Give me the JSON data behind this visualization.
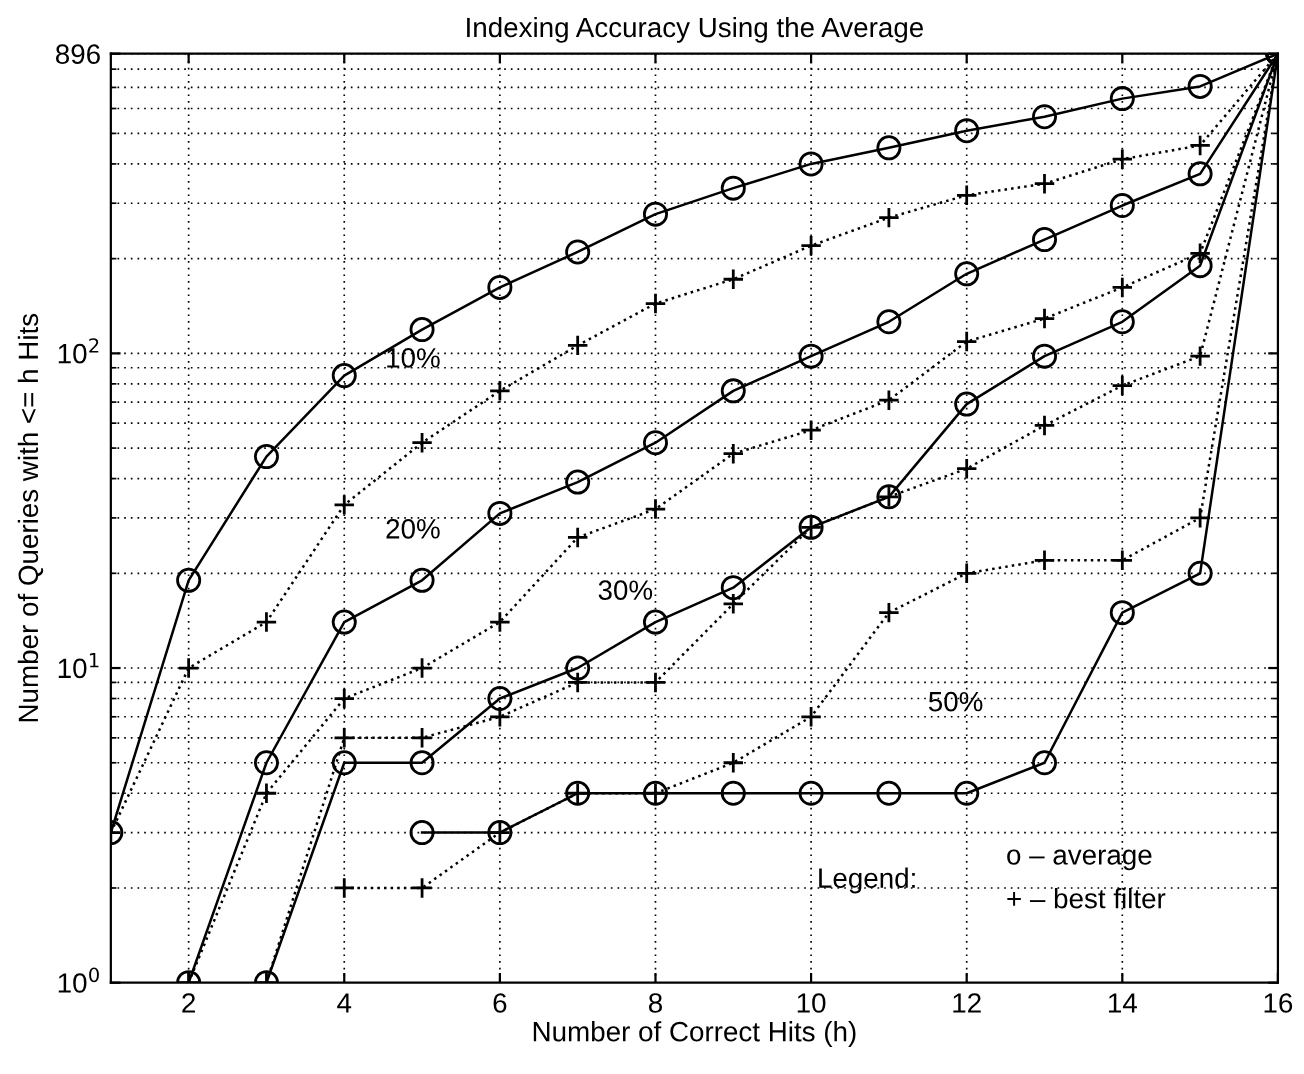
{
  "chart_data": {
    "type": "line",
    "title": "Indexing Accuracy Using the Average",
    "xlabel": "Number of Correct Hits (h)",
    "ylabel": "Number of Queries with <= h Hits",
    "log": "y",
    "grid": true,
    "legend": false,
    "xlim": [
      1,
      16
    ],
    "xticks": [
      2,
      4,
      6,
      8,
      10,
      12,
      14,
      16
    ],
    "ylim": [
      1,
      896
    ],
    "yticks": [
      {
        "value": 1,
        "label": "10$^{0}$"
      },
      {
        "value": 10,
        "label": "10$^{1}$"
      },
      {
        "value": 100,
        "label": "10$^{2}$"
      },
      896
    ],
    "series": [
      {
        "color": "#000000",
        "marker": "circle",
        "line_style": "solid",
        "x": [
          1,
          2,
          3,
          4,
          5,
          6,
          7,
          8,
          9,
          10,
          11,
          12,
          13,
          14,
          15,
          16
        ],
        "values": [
          3,
          19,
          47,
          85,
          119,
          162,
          210,
          277,
          335,
          400,
          450,
          510,
          565,
          645,
          705,
          896
        ]
      },
      {
        "color": "#000000",
        "marker": "cross",
        "line_style": "dotted",
        "x": [
          1,
          2,
          3,
          4,
          5,
          6,
          7,
          8,
          9,
          10,
          11,
          12,
          13,
          14,
          15,
          16
        ],
        "values": [
          3,
          10,
          14,
          33,
          52,
          76,
          106,
          144,
          172,
          220,
          270,
          318,
          346,
          414,
          458,
          896
        ]
      },
      {
        "color": "#000000",
        "marker": "circle",
        "line_style": "solid",
        "x": [
          2,
          3,
          4,
          5,
          6,
          7,
          8,
          9,
          10,
          11,
          12,
          13,
          14,
          15,
          16
        ],
        "values": [
          1,
          5,
          14,
          19,
          31,
          39,
          52,
          76,
          98,
          126,
          179,
          230,
          295,
          372,
          896
        ]
      },
      {
        "color": "#000000",
        "marker": "cross",
        "line_style": "dotted",
        "x": [
          2,
          3,
          4,
          5,
          6,
          7,
          8,
          9,
          10,
          11,
          12,
          13,
          14,
          15,
          16
        ],
        "values": [
          1,
          4,
          8,
          10,
          14,
          26,
          32,
          48,
          57,
          71,
          109,
          129,
          162,
          208,
          896
        ]
      },
      {
        "color": "#000000",
        "marker": "circle",
        "line_style": "solid",
        "x": [
          3,
          4,
          5,
          6,
          7,
          8,
          9,
          10,
          11,
          12,
          13,
          14,
          15,
          16
        ],
        "values": [
          1,
          5,
          5,
          8,
          10,
          14,
          18,
          28,
          35,
          69,
          98,
          126,
          190,
          896
        ]
      },
      {
        "color": "#000000",
        "marker": "cross",
        "line_style": "dotted",
        "x": [
          3,
          4,
          5,
          6,
          7,
          8,
          9,
          10,
          11,
          12,
          13,
          14,
          15,
          16
        ],
        "values": [
          1,
          6,
          6,
          7,
          9,
          9,
          16,
          28,
          35,
          43,
          59,
          79,
          98,
          896
        ]
      },
      {
        "color": "#000000",
        "marker": "circle",
        "line_style": "solid",
        "x": [
          5,
          6,
          7,
          8,
          9,
          10,
          11,
          12,
          13,
          14,
          15,
          16
        ],
        "values": [
          3,
          3,
          4,
          4,
          4,
          4,
          4,
          4,
          5,
          15,
          20,
          896
        ]
      },
      {
        "color": "#000000",
        "marker": "cross",
        "line_style": "dotted",
        "x": [
          4,
          5,
          6,
          7,
          8,
          9,
          10,
          11,
          12,
          13,
          14,
          15,
          16
        ],
        "values": [
          2,
          2,
          3,
          4,
          4,
          5,
          7,
          15,
          20,
          22,
          22,
          30,
          896
        ]
      }
    ],
    "annotations": [
      "10%",
      "20%",
      "30%",
      "50%",
      "Legend:",
      "o – average",
      "+ – best filter"
    ]
  }
}
